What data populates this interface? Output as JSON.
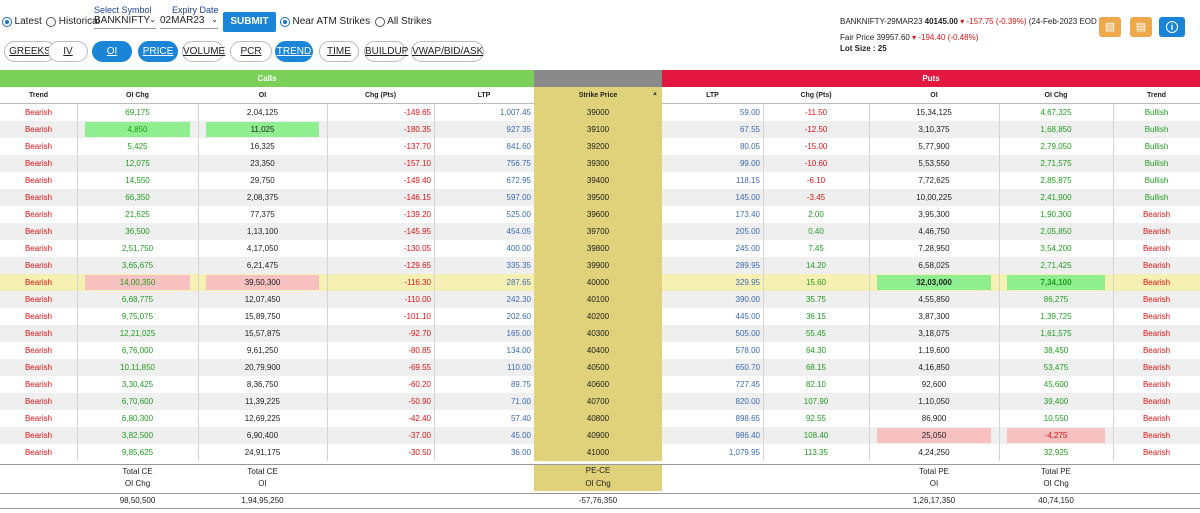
{
  "controls": {
    "latest_label": "Latest",
    "historical_label": "Historical",
    "symbol_caption": "Select Symbol",
    "symbol_value": "BANKNIFTY",
    "expiry_caption": "Expiry Date",
    "expiry_value": "02MAR23",
    "submit_label": "SUBMIT",
    "near_atm_label": "Near ATM Strikes",
    "all_strikes_label": "All Strikes"
  },
  "info": {
    "future_name": "BANKNIFTY-29MAR23",
    "future_price": "40145.00",
    "future_change": "-157.75 (-0.39%)",
    "future_date": "(24-Feb-2023 EOD )",
    "fair_label": "Fair Price",
    "fair_value": "39957.60",
    "fair_change": "-194.40 (-0.48%)",
    "lot_label": "Lot Size : 25"
  },
  "icons": [
    "excel-icon",
    "pdf-icon",
    "info-icon"
  ],
  "colors": {
    "calls": "#7bd05a",
    "puts": "#e3173f",
    "strike": "#8a8a8a",
    "accent": "#1a85d6",
    "atm": "#f6f1b2"
  },
  "tabs": [
    {
      "label": "GREEKS",
      "active": false
    },
    {
      "label": "IV",
      "active": false
    },
    {
      "label": "OI",
      "active": true
    },
    {
      "label": "PRICE",
      "active": true
    },
    {
      "label": "VOLUME",
      "active": false
    },
    {
      "label": "PCR",
      "active": false
    },
    {
      "label": "TREND",
      "active": true
    },
    {
      "label": "TIME",
      "active": false
    },
    {
      "label": "BUILDUP",
      "active": false
    },
    {
      "label": "VWAP/BID/ASK",
      "active": false
    }
  ],
  "table": {
    "calls_label": "Calls",
    "puts_label": "Puts",
    "headers": [
      "Trend",
      "OI Chg",
      "OI",
      "Chg (Pts)",
      "LTP",
      "Strike Price",
      "LTP",
      "Chg (Pts)",
      "OI",
      "OI Chg",
      "Trend"
    ],
    "rows": [
      [
        "Bearish",
        "69,175",
        "2,04,125",
        "-149.65",
        "1,007.45",
        "39000",
        "59.00",
        "-11.50",
        "15,34,125",
        "4,67,325",
        "Bullish"
      ],
      [
        "Bearish",
        "4,850",
        "11,025",
        "-180.35",
        "927.35",
        "39100",
        "67.55",
        "-12.50",
        "3,10,375",
        "1,68,850",
        "Bullish"
      ],
      [
        "Bearish",
        "5,425",
        "16,325",
        "-137.70",
        "841.60",
        "39200",
        "80.05",
        "-15.00",
        "5,77,900",
        "2,79,050",
        "Bullish"
      ],
      [
        "Bearish",
        "12,075",
        "23,350",
        "-157.10",
        "756.75",
        "39300",
        "99.00",
        "-10.60",
        "5,53,550",
        "2,71,575",
        "Bullish"
      ],
      [
        "Bearish",
        "14,550",
        "29,750",
        "-149.40",
        "672.95",
        "39400",
        "118.15",
        "-6.10",
        "7,72,625",
        "2,85,875",
        "Bullish"
      ],
      [
        "Bearish",
        "66,350",
        "2,08,375",
        "-146.15",
        "597.00",
        "39500",
        "145.00",
        "-3.45",
        "10,00,225",
        "2,41,900",
        "Bullish"
      ],
      [
        "Bearish",
        "21,625",
        "77,375",
        "-139.20",
        "525.00",
        "39600",
        "173.40",
        "2.00",
        "3,95,300",
        "1,90,300",
        "Bearish"
      ],
      [
        "Bearish",
        "36,500",
        "1,13,100",
        "-145.95",
        "454.05",
        "39700",
        "205.00",
        "0.40",
        "4,46,750",
        "2,05,850",
        "Bearish"
      ],
      [
        "Bearish",
        "2,51,750",
        "4,17,050",
        "-130.05",
        "400.00",
        "39800",
        "245.00",
        "7.45",
        "7,28,950",
        "3,54,200",
        "Bearish"
      ],
      [
        "Bearish",
        "3,65,675",
        "6,21,475",
        "-129.65",
        "335.35",
        "39900",
        "289.95",
        "14.20",
        "6,58,025",
        "2,71,425",
        "Bearish"
      ],
      [
        "Bearish",
        "14,00,350",
        "39,50,300",
        "-116.30",
        "287.65",
        "40000",
        "329.95",
        "15.60",
        "32,03,000",
        "7,34,100",
        "Bearish"
      ],
      [
        "Bearish",
        "6,68,775",
        "12,07,450",
        "-110.00",
        "242.30",
        "40100",
        "390.00",
        "35.75",
        "4,55,850",
        "86,275",
        "Bearish"
      ],
      [
        "Bearish",
        "9,75,075",
        "15,89,750",
        "-101.10",
        "202.60",
        "40200",
        "445.00",
        "36.15",
        "3,87,300",
        "1,39,725",
        "Bearish"
      ],
      [
        "Bearish",
        "12,21,025",
        "15,57,875",
        "-92.70",
        "165.00",
        "40300",
        "505.00",
        "55.45",
        "3,18,075",
        "1,61,575",
        "Bearish"
      ],
      [
        "Bearish",
        "6,76,000",
        "9,61,250",
        "-80.85",
        "134.00",
        "40400",
        "578.00",
        "64.30",
        "1,19,600",
        "38,450",
        "Bearish"
      ],
      [
        "Bearish",
        "10,11,850",
        "20,79,900",
        "-69.55",
        "110.00",
        "40500",
        "650.70",
        "68.15",
        "4,16,850",
        "53,475",
        "Bearish"
      ],
      [
        "Bearish",
        "3,30,425",
        "8,36,750",
        "-60.20",
        "89.75",
        "40600",
        "727.45",
        "82.10",
        "92,600",
        "45,600",
        "Bearish"
      ],
      [
        "Bearish",
        "6,70,600",
        "11,39,225",
        "-50.90",
        "71.00",
        "40700",
        "820.00",
        "107.90",
        "1,10,050",
        "39,400",
        "Bearish"
      ],
      [
        "Bearish",
        "6,80,300",
        "12,69,225",
        "-42.40",
        "57.40",
        "40800",
        "898.65",
        "92.55",
        "86,900",
        "10,550",
        "Bearish"
      ],
      [
        "Bearish",
        "3,82,500",
        "6,90,400",
        "-37.00",
        "45.00",
        "40900",
        "986.40",
        "108.40",
        "25,050",
        "-4,275",
        "Bearish"
      ],
      [
        "Bearish",
        "9,85,625",
        "24,91,175",
        "-30.50",
        "36.00",
        "41000",
        "1,079.95",
        "113.35",
        "4,24,250",
        "32,925",
        "Bearish"
      ]
    ],
    "totals_labels": {
      "ce_oichg": "Total CE",
      "ce_oichg2": "OI Chg",
      "ce_oi": "Total CE",
      "ce_oi2": "OI",
      "pece": "PE-CE",
      "pece2": "OI Chg",
      "pe_oi": "Total PE",
      "pe_oi2": "OI",
      "pe_oichg": "Total PE",
      "pe_oichg2": "OI Chg"
    },
    "totals_values": {
      "ce_oichg": "98,50,500",
      "ce_oi": "1,94,95,250",
      "pece": "-57,76,350",
      "pe_oi": "1,26,17,350",
      "pe_oichg": "40,74,150"
    }
  }
}
